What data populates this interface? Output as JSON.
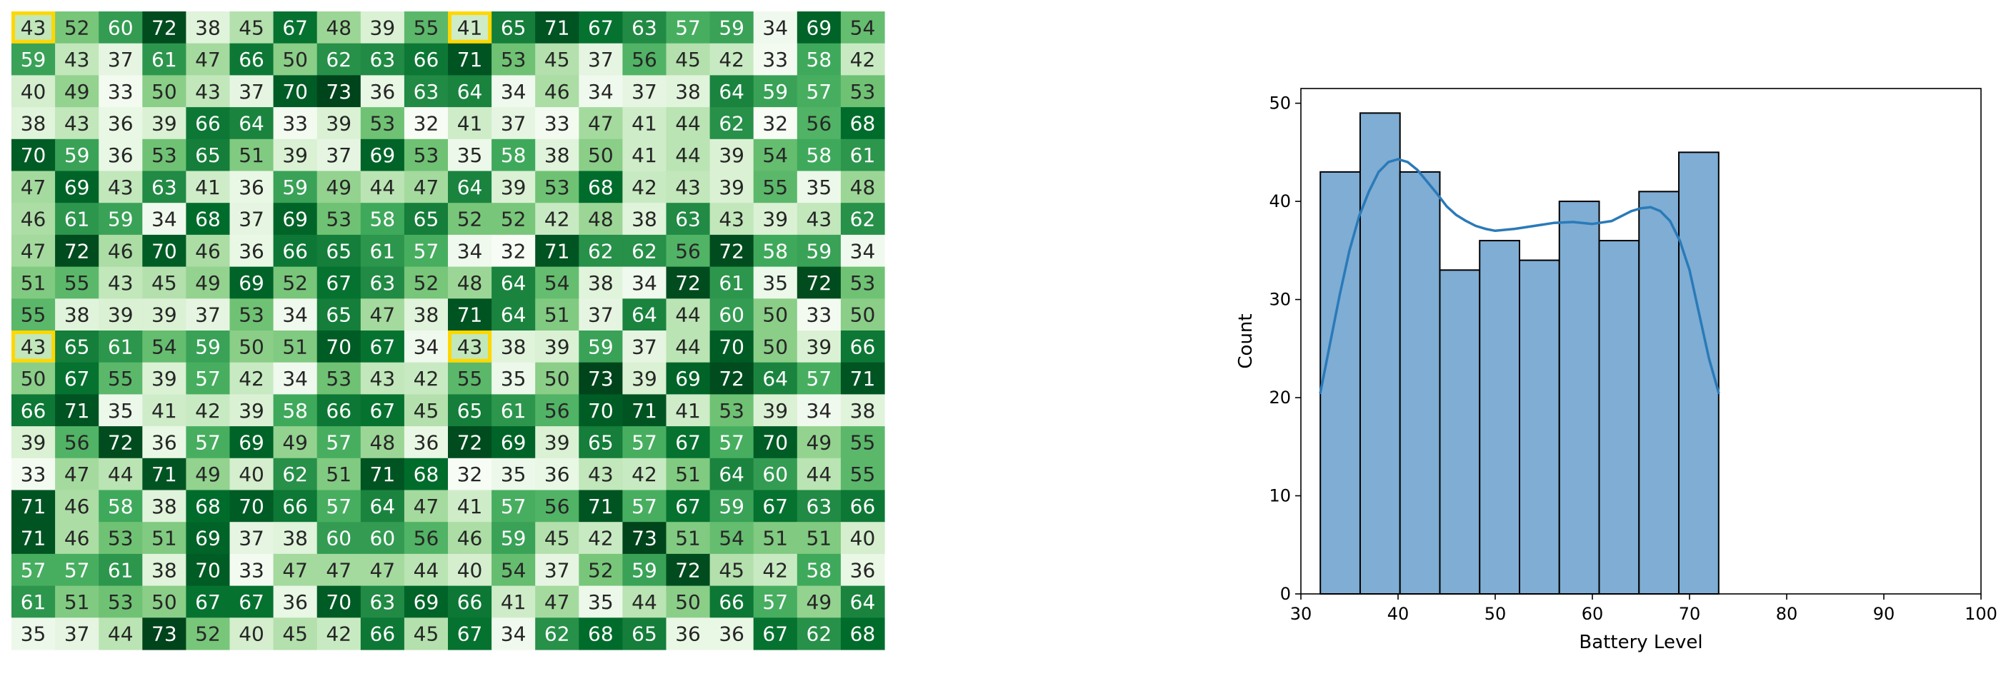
{
  "chart_data": [
    {
      "type": "heatmap",
      "colormap": "Greens",
      "value_range": [
        32,
        73
      ],
      "highlight_color": "#FFD700",
      "highlighted_cells": [
        [
          0,
          0
        ],
        [
          0,
          10
        ],
        [
          10,
          0
        ],
        [
          10,
          10
        ]
      ],
      "values": [
        [
          43,
          52,
          60,
          72,
          38,
          45,
          67,
          48,
          39,
          55,
          41,
          65,
          71,
          67,
          63,
          57,
          59,
          34,
          69,
          54
        ],
        [
          59,
          43,
          37,
          61,
          47,
          66,
          50,
          62,
          63,
          66,
          71,
          53,
          45,
          37,
          56,
          45,
          42,
          33,
          58,
          42
        ],
        [
          40,
          49,
          33,
          50,
          43,
          37,
          70,
          73,
          36,
          63,
          64,
          34,
          46,
          34,
          37,
          38,
          64,
          59,
          57,
          53
        ],
        [
          38,
          43,
          36,
          39,
          66,
          64,
          33,
          39,
          53,
          32,
          41,
          37,
          33,
          47,
          41,
          44,
          62,
          32,
          56,
          68
        ],
        [
          70,
          59,
          36,
          53,
          65,
          51,
          39,
          37,
          69,
          53,
          35,
          58,
          38,
          50,
          41,
          44,
          39,
          54,
          58,
          61
        ],
        [
          47,
          69,
          43,
          63,
          41,
          36,
          59,
          49,
          44,
          47,
          64,
          39,
          53,
          68,
          42,
          43,
          39,
          55,
          35,
          48
        ],
        [
          46,
          61,
          59,
          34,
          68,
          37,
          69,
          53,
          58,
          65,
          52,
          52,
          42,
          48,
          38,
          63,
          43,
          39,
          43,
          62
        ],
        [
          47,
          72,
          46,
          70,
          46,
          36,
          66,
          65,
          61,
          57,
          34,
          32,
          71,
          62,
          62,
          56,
          72,
          58,
          59,
          34
        ],
        [
          51,
          55,
          43,
          45,
          49,
          69,
          52,
          67,
          63,
          52,
          48,
          64,
          54,
          38,
          34,
          72,
          61,
          35,
          72,
          53
        ],
        [
          55,
          38,
          39,
          39,
          37,
          53,
          34,
          65,
          47,
          38,
          71,
          64,
          51,
          37,
          64,
          44,
          60,
          50,
          33,
          50
        ],
        [
          43,
          65,
          61,
          54,
          59,
          50,
          51,
          70,
          67,
          34,
          43,
          38,
          39,
          59,
          37,
          44,
          70,
          50,
          39,
          66
        ],
        [
          50,
          67,
          55,
          39,
          57,
          42,
          34,
          53,
          43,
          42,
          55,
          35,
          50,
          73,
          39,
          69,
          72,
          64,
          57,
          71
        ],
        [
          66,
          71,
          35,
          41,
          42,
          39,
          58,
          66,
          67,
          45,
          65,
          61,
          56,
          70,
          71,
          41,
          53,
          39,
          34,
          38
        ],
        [
          39,
          56,
          72,
          36,
          57,
          69,
          49,
          57,
          48,
          36,
          72,
          69,
          39,
          65,
          57,
          67,
          57,
          70,
          49,
          55
        ],
        [
          33,
          47,
          44,
          71,
          49,
          40,
          62,
          51,
          71,
          68,
          32,
          35,
          36,
          43,
          42,
          51,
          64,
          60,
          44,
          55
        ],
        [
          71,
          46,
          58,
          38,
          68,
          70,
          66,
          57,
          64,
          47,
          41,
          57,
          56,
          71,
          57,
          67,
          59,
          67,
          63,
          66
        ],
        [
          71,
          46,
          53,
          51,
          69,
          37,
          38,
          60,
          60,
          56,
          46,
          59,
          45,
          42,
          73,
          51,
          54,
          51,
          51,
          40
        ],
        [
          57,
          57,
          61,
          38,
          70,
          33,
          47,
          47,
          47,
          44,
          40,
          54,
          37,
          52,
          59,
          72,
          45,
          42,
          58,
          36
        ],
        [
          61,
          51,
          53,
          50,
          67,
          67,
          36,
          70,
          63,
          69,
          66,
          41,
          47,
          35,
          44,
          50,
          66,
          57,
          49,
          64
        ],
        [
          35,
          37,
          44,
          73,
          52,
          40,
          45,
          42,
          66,
          45,
          67,
          34,
          62,
          68,
          65,
          36,
          36,
          67,
          62,
          68
        ]
      ]
    },
    {
      "type": "bar",
      "subtype": "histogram",
      "xlabel": "Battery Level",
      "ylabel": "Count",
      "xlim": [
        30,
        100
      ],
      "ylim": [
        0,
        51.5
      ],
      "xticks": [
        30,
        40,
        50,
        60,
        70,
        80,
        90,
        100
      ],
      "yticks": [
        0,
        10,
        20,
        30,
        40,
        50
      ],
      "grid": false,
      "bar_color": "#7fadd4",
      "edge_color": "#000000",
      "kde_color": "#2a7ab8",
      "bins": [
        {
          "start": 32.0,
          "end": 36.1,
          "count": 43
        },
        {
          "start": 36.1,
          "end": 40.2,
          "count": 49
        },
        {
          "start": 40.2,
          "end": 44.3,
          "count": 43
        },
        {
          "start": 44.3,
          "end": 48.4,
          "count": 33
        },
        {
          "start": 48.4,
          "end": 52.5,
          "count": 36
        },
        {
          "start": 52.5,
          "end": 56.6,
          "count": 34
        },
        {
          "start": 56.6,
          "end": 60.7,
          "count": 40
        },
        {
          "start": 60.7,
          "end": 64.8,
          "count": 36
        },
        {
          "start": 64.8,
          "end": 68.9,
          "count": 41
        },
        {
          "start": 68.9,
          "end": 73.0,
          "count": 45
        }
      ],
      "kde": {
        "x": [
          32,
          33,
          34,
          35,
          36,
          37,
          38,
          39,
          40,
          41,
          42,
          43,
          44,
          45,
          46,
          47,
          48,
          49,
          50,
          52,
          54,
          56,
          58,
          60,
          62,
          63,
          64,
          65,
          66,
          67,
          68,
          69,
          70,
          71,
          72,
          73
        ],
        "y": [
          20.5,
          25.5,
          30.5,
          35,
          38.5,
          41,
          43,
          44,
          44.3,
          44,
          43.2,
          42,
          40.8,
          39.5,
          38.6,
          38,
          37.5,
          37.2,
          37,
          37.2,
          37.5,
          37.8,
          37.9,
          37.7,
          38,
          38.5,
          39,
          39.3,
          39.4,
          39,
          38,
          36,
          33,
          28.5,
          24,
          20.5
        ]
      }
    }
  ]
}
